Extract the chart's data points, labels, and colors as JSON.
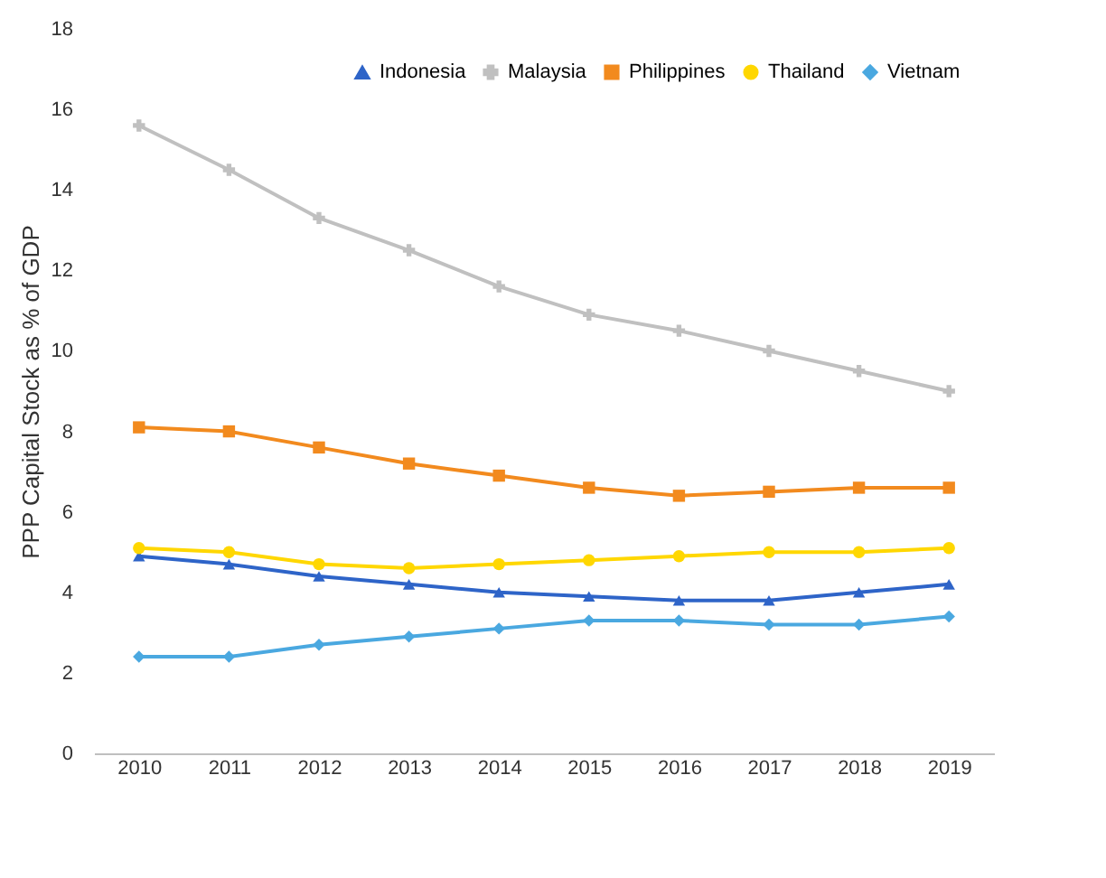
{
  "chart_data": {
    "type": "line",
    "ylabel": "PPP Capital Stock as % of GDP",
    "categories": [
      "2010",
      "2011",
      "2012",
      "2013",
      "2014",
      "2015",
      "2016",
      "2017",
      "2018",
      "2019"
    ],
    "series": [
      {
        "name": "Indonesia",
        "color": "#2e64c8",
        "marker": "triangle",
        "values": [
          4.9,
          4.7,
          4.4,
          4.2,
          4.0,
          3.9,
          3.8,
          3.8,
          4.0,
          4.2
        ]
      },
      {
        "name": "Malaysia",
        "color": "#c0c0c0",
        "marker": "cross",
        "values": [
          15.6,
          14.5,
          13.3,
          12.5,
          11.6,
          10.9,
          10.5,
          10.0,
          9.5,
          9.0
        ]
      },
      {
        "name": "Philippines",
        "color": "#f28a1e",
        "marker": "square",
        "values": [
          8.1,
          8.0,
          7.6,
          7.2,
          6.9,
          6.6,
          6.4,
          6.5,
          6.6,
          6.6
        ]
      },
      {
        "name": "Thailand",
        "color": "#ffd700",
        "marker": "circle",
        "values": [
          5.1,
          5.0,
          4.7,
          4.6,
          4.7,
          4.8,
          4.9,
          5.0,
          5.0,
          5.1
        ]
      },
      {
        "name": "Vietnam",
        "color": "#4aa8e0",
        "marker": "diamond",
        "values": [
          2.4,
          2.4,
          2.7,
          2.9,
          3.1,
          3.3,
          3.3,
          3.2,
          3.2,
          3.4
        ]
      }
    ],
    "ylim": [
      0,
      18
    ],
    "yticks": [
      0,
      2,
      4,
      6,
      8,
      10,
      12,
      14,
      16,
      18
    ],
    "grid": false,
    "legend": "top right",
    "line_style": "solid"
  }
}
